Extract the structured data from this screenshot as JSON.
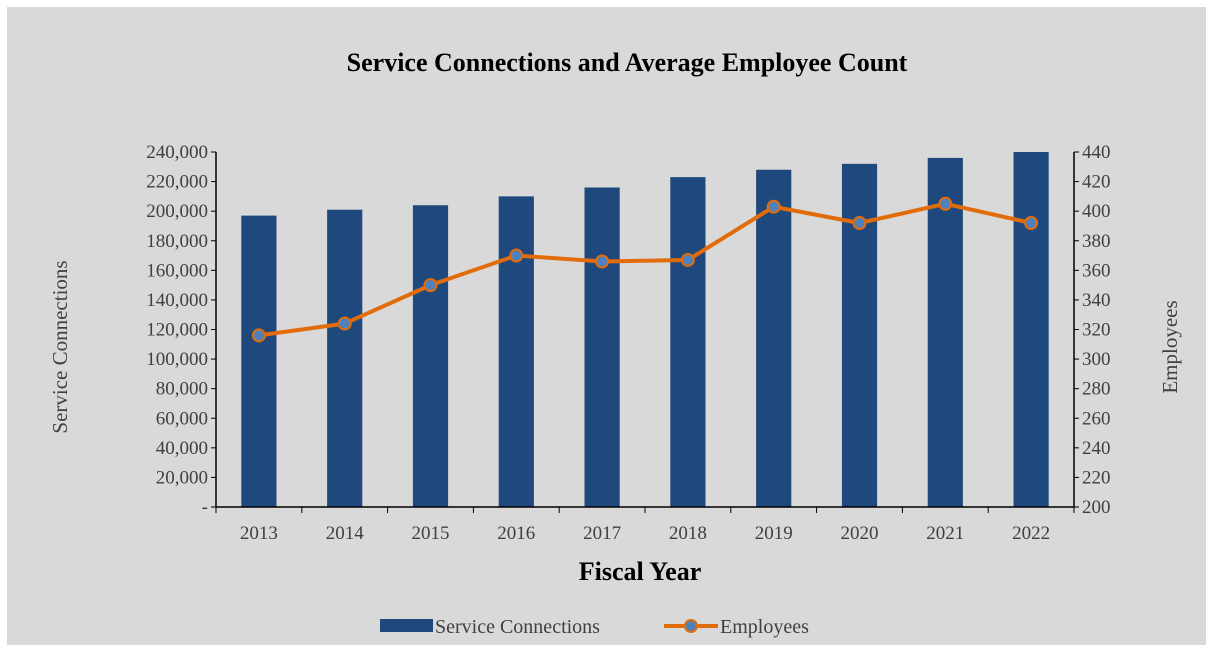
{
  "chart_data": {
    "type": "bar+line",
    "title": "Service Connections and Average Employee Count",
    "xlabel": "Fiscal Year",
    "ylabel_left": "Service Connections",
    "ylabel_right": "Employees",
    "categories": [
      "2013",
      "2014",
      "2015",
      "2016",
      "2017",
      "2018",
      "2019",
      "2020",
      "2021",
      "2022"
    ],
    "y_left": {
      "min": 0,
      "max": 240000,
      "ticks": [
        0,
        20000,
        40000,
        60000,
        80000,
        100000,
        120000,
        140000,
        160000,
        180000,
        200000,
        220000,
        240000
      ],
      "tick_labels": [
        "-",
        "20,000",
        "40,000",
        "60,000",
        "80,000",
        "100,000",
        "120,000",
        "140,000",
        "160,000",
        "180,000",
        "200,000",
        "220,000",
        "240,000"
      ]
    },
    "y_right": {
      "min": 200,
      "max": 440,
      "ticks": [
        200,
        220,
        240,
        260,
        280,
        300,
        320,
        340,
        360,
        380,
        400,
        420,
        440
      ],
      "tick_labels": [
        "200",
        "220",
        "240",
        "260",
        "280",
        "300",
        "320",
        "340",
        "360",
        "380",
        "400",
        "420",
        "440"
      ]
    },
    "grid": false,
    "legend_position": "bottom",
    "series": [
      {
        "name": "Service Connections",
        "kind": "bar",
        "axis": "left",
        "color": "#1f497d",
        "values": [
          197000,
          201000,
          204000,
          210000,
          216000,
          223000,
          228000,
          232000,
          236000,
          240000
        ]
      },
      {
        "name": "Employees",
        "kind": "line",
        "axis": "right",
        "color": "#e36c0a",
        "marker_color": "#4f81bd",
        "values": [
          316,
          324,
          350,
          370,
          366,
          367,
          403,
          392,
          405,
          392
        ]
      }
    ]
  }
}
